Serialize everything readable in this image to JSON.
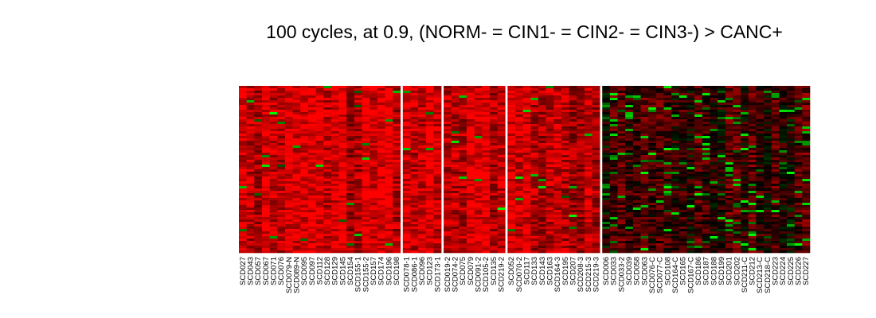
{
  "chart_data": {
    "type": "heatmap",
    "title": "100 cycles, at 0.9, (NORM- = CIN1- = CIN2- = CIN3-) > CANC+",
    "colormap": {
      "low": "#00ff00",
      "mid": "#000000",
      "high": "#ff0000"
    },
    "separator_color": "#ffffff",
    "groups": [
      {
        "samples": [
          "SCD027",
          "SCD043",
          "SCD057",
          "SCD067",
          "SCD071",
          "SCD076",
          "SCD079-N",
          "SCD089-N",
          "SCD095",
          "SCD097",
          "SCD112",
          "SCD128",
          "SCD129",
          "SCD145",
          "SCD154",
          "SCD155-1",
          "SCD155-2",
          "SCD157",
          "SCD174",
          "SCD196",
          "SCD198"
        ],
        "tone": 0.78
      },
      {
        "samples": [
          "SCD078-1",
          "SCD086-1",
          "SCD096",
          "SCD123",
          "SCD173-1"
        ],
        "tone": 0.85
      },
      {
        "samples": [
          "SCD019-2",
          "SCD074-2",
          "SCD075",
          "SCD079",
          "SCD091-2",
          "SCD105-2",
          "SCD135",
          "SCD219-2"
        ],
        "tone": 0.82
      },
      {
        "samples": [
          "SCD052",
          "SCD070-2",
          "SCD117",
          "SCD133",
          "SCD143",
          "SCD163",
          "SCD164-3",
          "SCD195",
          "SCD207",
          "SCD208-3",
          "SCD215-3",
          "SCD219-3"
        ],
        "tone": 0.72
      },
      {
        "samples": [
          "SCD006",
          "SCD033",
          "SCD033-2",
          "SCD039",
          "SCD058",
          "SCD063",
          "SCD076-C",
          "SCD077-C",
          "SCD108",
          "SCD164-C",
          "SCD165",
          "SCD167-C",
          "SCD186",
          "SCD187",
          "SCD188",
          "SCD199",
          "SCD201",
          "SCD202",
          "SCD211-C",
          "SCD212",
          "SCD213-C",
          "SCD218-C",
          "SCD223",
          "SCD224",
          "SCD225",
          "SCD226",
          "SCD227"
        ],
        "tone": 0.25
      }
    ]
  }
}
